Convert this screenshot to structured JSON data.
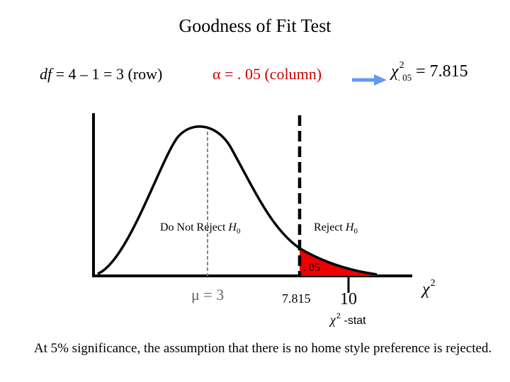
{
  "title": "Goodness of Fit Test",
  "df_text": {
    "prefix": "df",
    "rest": " = 4 – 1 = 3 (row)"
  },
  "alpha_text": {
    "symbol": "α",
    "rest": " = . 05 (column)"
  },
  "critical": {
    "symbol": "χ",
    "sup": "2",
    "sub": ". 05",
    "value": "= 7.815"
  },
  "regions": {
    "do_not_reject": "Do Not Reject ",
    "reject": "Reject ",
    "h0": "H",
    "h0_sub": "0"
  },
  "alpha_area_label": ". 05",
  "mean_label": "μ = 3",
  "critical_tick_label": "7.815",
  "test_stat_value": "10",
  "axis_symbol": {
    "symbol": "χ",
    "sup": "2"
  },
  "stat_label": {
    "symbol": "χ",
    "sup": "2",
    "suffix": " -stat"
  },
  "conclusion": "At 5% significance, the assumption that there is no home style preference is rejected.",
  "colors": {
    "rejection_fill": "#ee0000",
    "alpha_text": "#cc0000",
    "arrow": "#6699ee",
    "mean_line": "#888888"
  },
  "chart_data": {
    "type": "chi-square density (schematic)",
    "df": 3,
    "alpha": 0.05,
    "critical_value": 7.815,
    "mean": 3,
    "test_statistic": 10,
    "decision": "Reject H0"
  }
}
